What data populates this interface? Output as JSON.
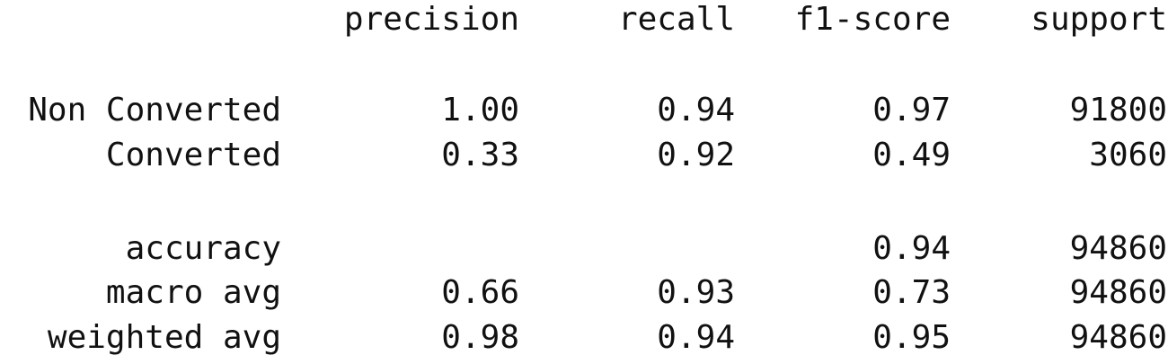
{
  "header": {
    "precision": "precision",
    "recall": "recall",
    "f1_score": "f1-score",
    "support": "support"
  },
  "rows": [
    {
      "label": "Non Converted",
      "precision": "1.00",
      "recall": "0.94",
      "f1_score": "0.97",
      "support": "91800"
    },
    {
      "label": "Converted",
      "precision": "0.33",
      "recall": "0.92",
      "f1_score": "0.49",
      "support": "3060"
    },
    {
      "label": "accuracy",
      "precision": "",
      "recall": "",
      "f1_score": "0.94",
      "support": "94860"
    },
    {
      "label": "macro avg",
      "precision": "0.66",
      "recall": "0.93",
      "f1_score": "0.73",
      "support": "94860"
    },
    {
      "label": "weighted avg",
      "precision": "0.98",
      "recall": "0.94",
      "f1_score": "0.95",
      "support": "94860"
    }
  ]
}
